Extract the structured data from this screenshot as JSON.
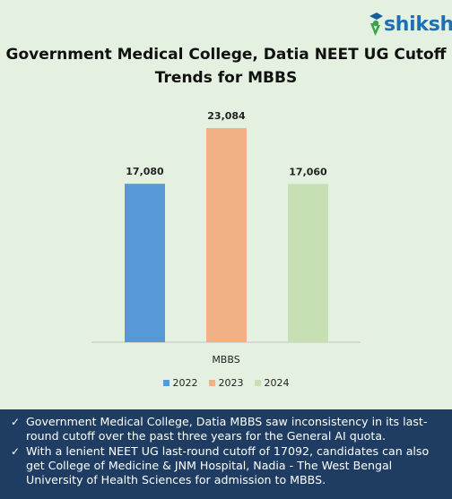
{
  "brand": {
    "name": "shiksha",
    "color": "#1d6fb8",
    "icon": "graduate-cap-logo-icon"
  },
  "chart_data": {
    "type": "bar",
    "title": "Government Medical College, Datia NEET UG Cutoff Trends for MBBS",
    "categories": [
      "MBBS"
    ],
    "xlabel": "",
    "ylabel": "",
    "grid": false,
    "legend_position": "bottom",
    "series": [
      {
        "name": "2022",
        "values": [
          17080
        ],
        "label": "17,080",
        "color": "#5599d6"
      },
      {
        "name": "2023",
        "values": [
          23084
        ],
        "label": "23,084",
        "color": "#f2b184"
      },
      {
        "name": "2024",
        "values": [
          17060
        ],
        "label": "17,060",
        "color": "#c6e0b3"
      }
    ]
  },
  "notes": {
    "icon": "check-mark-icon",
    "items": [
      "Government Medical College, Datia MBBS saw inconsistency in its last-round cutoff over the past three years for the General AI quota.",
      "With a lenient NEET UG last-round cutoff of 17092, candidates can also get College of Medicine & JNM Hospital, Nadia - The West Bengal University of Health Sciences for admission to MBBS."
    ]
  }
}
